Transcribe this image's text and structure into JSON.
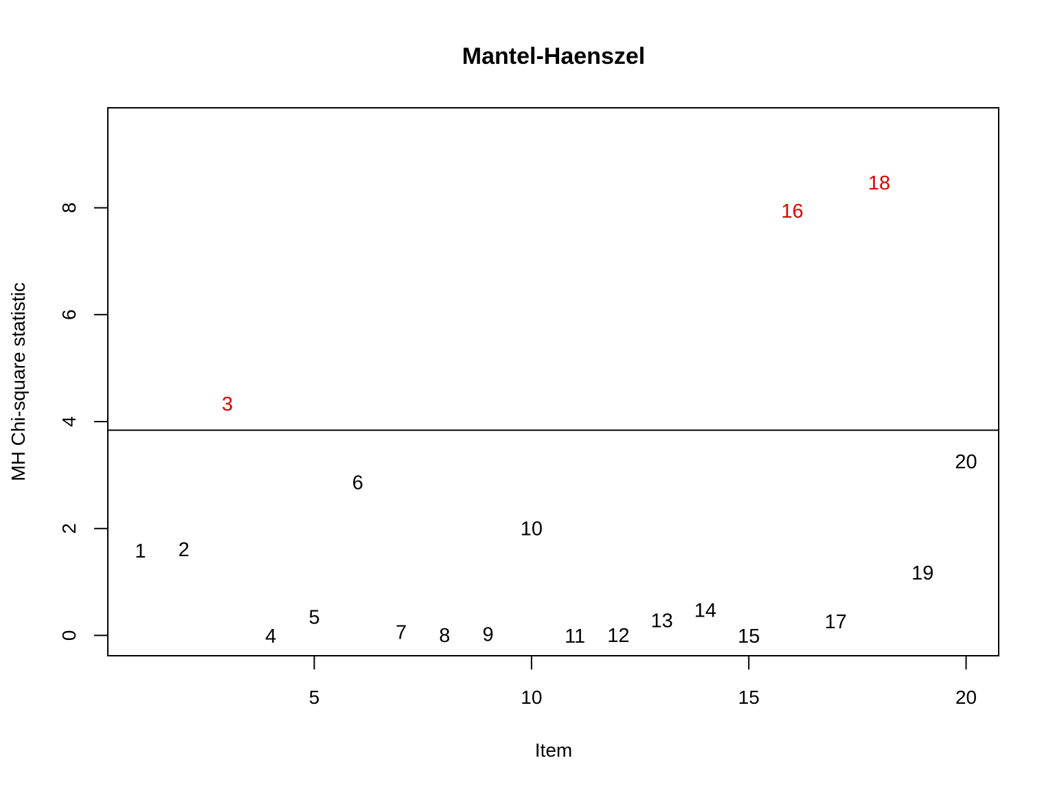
{
  "chart_data": {
    "type": "scatter",
    "title": "Mantel-Haenszel",
    "xlabel": "Item",
    "ylabel": "MH Chi-square statistic",
    "xlim": [
      0.25,
      20.75
    ],
    "ylim": [
      -0.38,
      9.87
    ],
    "x_ticks": [
      5,
      10,
      15,
      20
    ],
    "y_ticks": [
      0,
      2,
      4,
      6,
      8
    ],
    "threshold": 3.84,
    "colors": {
      "normal": "#000000",
      "flagged": "#dd0000",
      "line": "#000000"
    },
    "grid": false,
    "points": [
      {
        "label": "1",
        "x": 1,
        "y": 1.57,
        "flagged": false
      },
      {
        "label": "2",
        "x": 2,
        "y": 1.6,
        "flagged": false
      },
      {
        "label": "3",
        "x": 3,
        "y": 4.32,
        "flagged": true
      },
      {
        "label": "4",
        "x": 4,
        "y": -0.02,
        "flagged": false
      },
      {
        "label": "5",
        "x": 5,
        "y": 0.33,
        "flagged": false
      },
      {
        "label": "6",
        "x": 6,
        "y": 2.85,
        "flagged": false
      },
      {
        "label": "7",
        "x": 7,
        "y": 0.05,
        "flagged": false
      },
      {
        "label": "8",
        "x": 8,
        "y": -0.01,
        "flagged": false
      },
      {
        "label": "9",
        "x": 9,
        "y": 0.01,
        "flagged": false
      },
      {
        "label": "10",
        "x": 10,
        "y": 1.99,
        "flagged": false
      },
      {
        "label": "11",
        "x": 11,
        "y": -0.02,
        "flagged": false
      },
      {
        "label": "12",
        "x": 12,
        "y": -0.01,
        "flagged": false
      },
      {
        "label": "13",
        "x": 13,
        "y": 0.27,
        "flagged": false
      },
      {
        "label": "14",
        "x": 14,
        "y": 0.46,
        "flagged": false
      },
      {
        "label": "15",
        "x": 15,
        "y": -0.02,
        "flagged": false
      },
      {
        "label": "16",
        "x": 16,
        "y": 7.93,
        "flagged": true
      },
      {
        "label": "17",
        "x": 17,
        "y": 0.25,
        "flagged": false
      },
      {
        "label": "18",
        "x": 18,
        "y": 8.46,
        "flagged": true
      },
      {
        "label": "19",
        "x": 19,
        "y": 1.16,
        "flagged": false
      },
      {
        "label": "20",
        "x": 20,
        "y": 3.24,
        "flagged": false
      }
    ]
  }
}
